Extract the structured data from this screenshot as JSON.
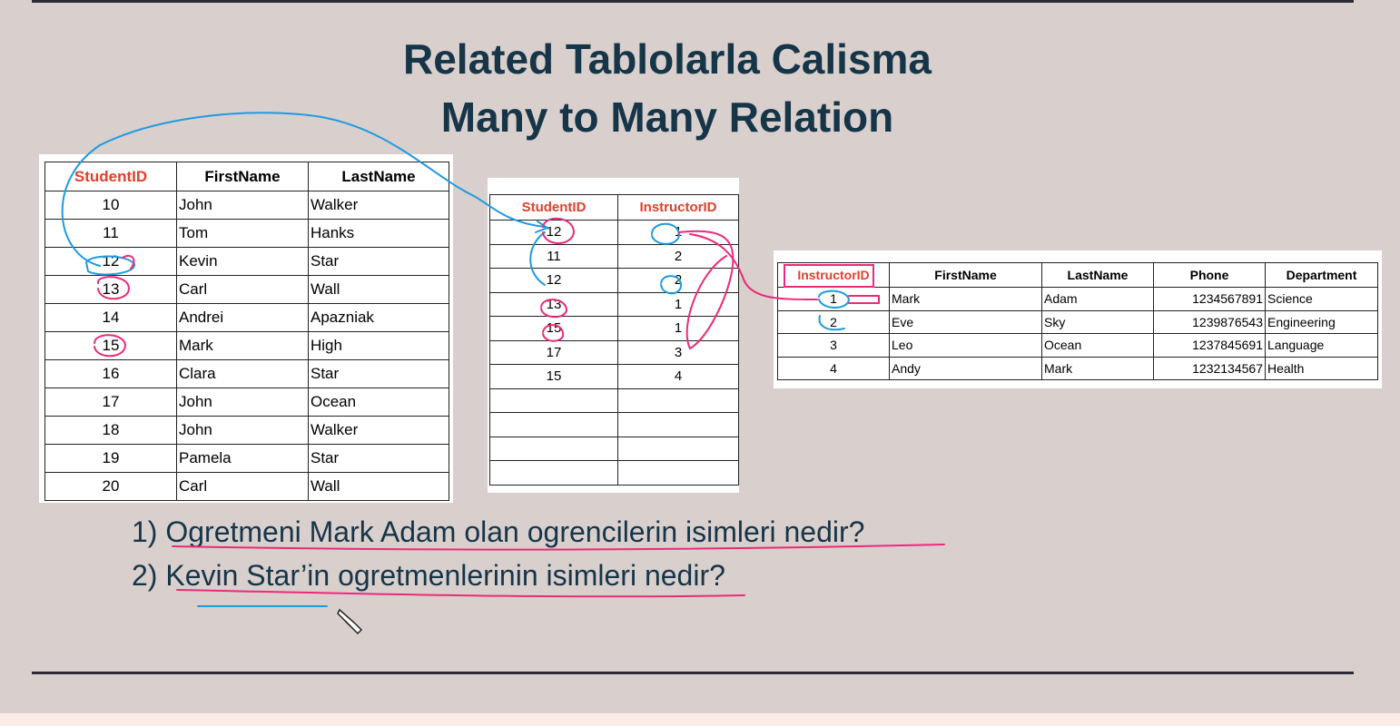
{
  "title": {
    "line1": "Related Tablolarla Calisma",
    "line2": "Many to Many Relation"
  },
  "students": {
    "headers": [
      "StudentID",
      "FirstName",
      "LastName"
    ],
    "rows": [
      [
        "10",
        "John",
        "Walker"
      ],
      [
        "11",
        "Tom",
        "Hanks"
      ],
      [
        "12",
        "Kevin",
        "Star"
      ],
      [
        "13",
        "Carl",
        "Wall"
      ],
      [
        "14",
        "Andrei",
        "Apazniak"
      ],
      [
        "15",
        "Mark",
        "High"
      ],
      [
        "16",
        "Clara",
        "Star"
      ],
      [
        "17",
        "John",
        "Ocean"
      ],
      [
        "18",
        "John",
        "Walker"
      ],
      [
        "19",
        "Pamela",
        "Star"
      ],
      [
        "20",
        "Carl",
        "Wall"
      ]
    ]
  },
  "junction": {
    "headers": [
      "StudentID",
      "InstructorID"
    ],
    "rows": [
      [
        "12",
        "1"
      ],
      [
        "11",
        "2"
      ],
      [
        "12",
        "2"
      ],
      [
        "13",
        "1"
      ],
      [
        "15",
        "1"
      ],
      [
        "17",
        "3"
      ],
      [
        "15",
        "4"
      ]
    ]
  },
  "instructors": {
    "headers": [
      "InstructorID",
      "FirstName",
      "LastName",
      "Phone",
      "Department"
    ],
    "rows": [
      [
        "1",
        "Mark",
        "Adam",
        "1234567891",
        "Science"
      ],
      [
        "2",
        "Eve",
        "Sky",
        "1239876543",
        "Engineering"
      ],
      [
        "3",
        "Leo",
        "Ocean",
        "1237845691",
        "Language"
      ],
      [
        "4",
        "Andy",
        "Mark",
        "1232134567",
        "Health"
      ]
    ]
  },
  "questions": [
    "1) Ogretmeni Mark Adam olan ogrencilerin isimleri nedir?",
    "2) Kevin Star’in ogretmenlerinin isimleri nedir?"
  ],
  "colors": {
    "title": "#163548",
    "background": "#d9d0cd",
    "header_red": "#e0402a",
    "ink_blue": "#1e9be0",
    "ink_pink": "#ec2a7a"
  },
  "icons": {
    "cursor": "pencil-cursor-icon"
  }
}
